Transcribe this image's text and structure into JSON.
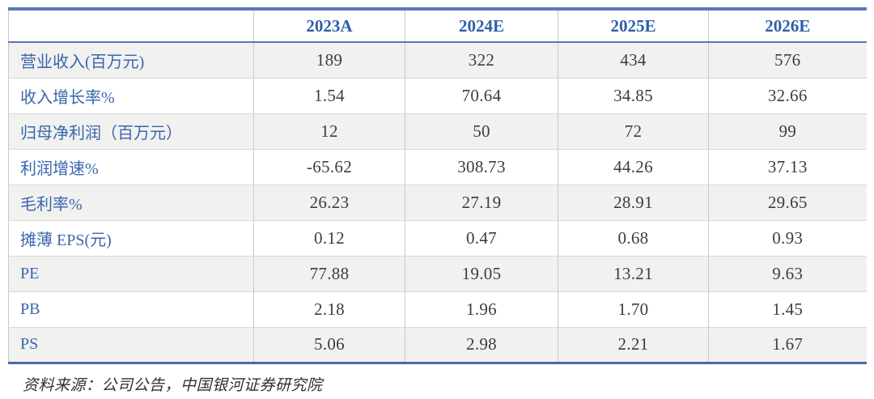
{
  "table": {
    "columns": [
      "2023A",
      "2024E",
      "2025E",
      "2026E"
    ],
    "rows": [
      {
        "label": "营业收入(百万元)",
        "values": [
          "189",
          "322",
          "434",
          "576"
        ]
      },
      {
        "label": "收入增长率%",
        "values": [
          "1.54",
          "70.64",
          "34.85",
          "32.66"
        ]
      },
      {
        "label": "归母净利润（百万元）",
        "values": [
          "12",
          "50",
          "72",
          "99"
        ]
      },
      {
        "label": "利润增速%",
        "values": [
          "-65.62",
          "308.73",
          "44.26",
          "37.13"
        ]
      },
      {
        "label": "毛利率%",
        "values": [
          "26.23",
          "27.19",
          "28.91",
          "29.65"
        ]
      },
      {
        "label": "摊薄 EPS(元)",
        "values": [
          "0.12",
          "0.47",
          "0.68",
          "0.93"
        ]
      },
      {
        "label": "PE",
        "values": [
          "77.88",
          "19.05",
          "13.21",
          "9.63"
        ]
      },
      {
        "label": "PB",
        "values": [
          "2.18",
          "1.96",
          "1.70",
          "1.45"
        ]
      },
      {
        "label": "PS",
        "values": [
          "5.06",
          "2.98",
          "2.21",
          "1.67"
        ]
      }
    ]
  },
  "footer": {
    "source_note": "资料来源：公司公告，中国银河证券研究院"
  },
  "colors": {
    "accent_border": "#5B78B7",
    "accent_border_mid": "#5C77B6",
    "accent_border_dark": "#4C68AA",
    "header_text": "#2E5FA7",
    "label_text": "#3866AC",
    "value_text": "#3D3D3D",
    "row_alt_bg": "#F1F1F0",
    "grid_line": "#C9C9C9"
  }
}
